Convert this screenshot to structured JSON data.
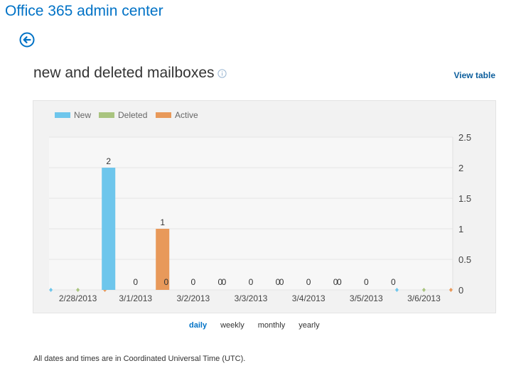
{
  "app": {
    "title": "Office 365 admin center"
  },
  "page": {
    "title": "new and deleted mailboxes",
    "view_table": "View table"
  },
  "period": {
    "options": [
      "daily",
      "weekly",
      "monthly",
      "yearly"
    ],
    "selected": "daily"
  },
  "footnote": "All dates and times are in Coordinated Universal Time (UTC).",
  "colors": {
    "accent": "#0072c6",
    "new": "#6ec6ec",
    "deleted": "#a9c47f",
    "active": "#e8995a"
  },
  "chart_data": {
    "type": "bar",
    "categories": [
      "2/28/2013",
      "3/1/2013",
      "3/2/2013",
      "3/3/2013",
      "3/4/2013",
      "3/5/2013",
      "3/6/2013"
    ],
    "series": [
      {
        "name": "New",
        "values": [
          0,
          2,
          0,
          0,
          0,
          0,
          0
        ]
      },
      {
        "name": "Deleted",
        "values": [
          0,
          0,
          0,
          0,
          0,
          0,
          0
        ]
      },
      {
        "name": "Active",
        "values": [
          0,
          1,
          0,
          0,
          0,
          0,
          0
        ]
      }
    ],
    "data_labels": [
      [
        null,
        "2",
        "0",
        "0",
        "0",
        "0",
        null
      ],
      [
        null,
        "0",
        "0",
        "0",
        "0",
        "0",
        null
      ],
      [
        null,
        "1",
        "0",
        "0",
        "0",
        "0",
        null
      ]
    ],
    "y_ticks": [
      "0",
      "0.5",
      "1",
      "1.5",
      "2",
      "2.5"
    ],
    "ylim": [
      0,
      2.5
    ],
    "y_axis_side": "right",
    "legend_position": "top-left",
    "grid": true
  }
}
